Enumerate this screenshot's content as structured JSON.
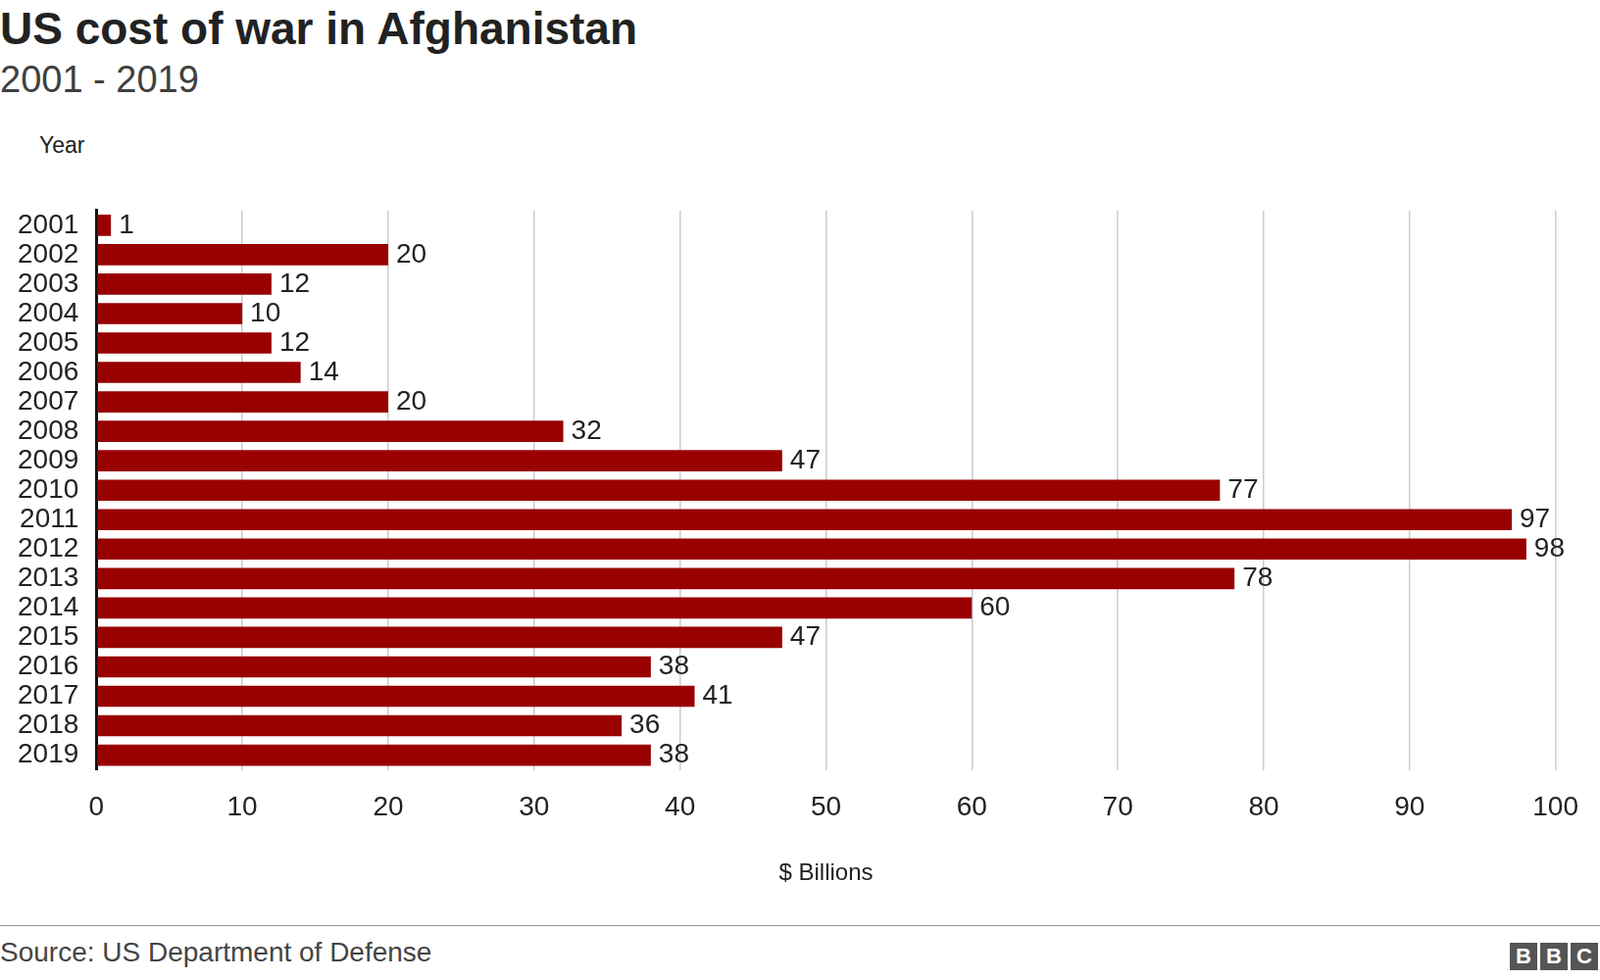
{
  "chart_data": {
    "type": "bar",
    "orientation": "horizontal",
    "title": "US cost of war in Afghanistan",
    "subtitle": "2001 - 2019",
    "y_label": "Year",
    "x_label": "$ Billions",
    "source": "Source: US Department of Defense",
    "logo": "BBC",
    "categories": [
      "2001",
      "2002",
      "2003",
      "2004",
      "2005",
      "2006",
      "2007",
      "2008",
      "2009",
      "2010",
      "2011",
      "2012",
      "2013",
      "2014",
      "2015",
      "2016",
      "2017",
      "2018",
      "2019"
    ],
    "values": [
      1,
      20,
      12,
      10,
      12,
      14,
      20,
      32,
      47,
      77,
      97,
      98,
      78,
      60,
      47,
      38,
      41,
      36,
      38
    ],
    "color": "#990000",
    "xlim": [
      0,
      100
    ],
    "xticks": [
      0,
      10,
      20,
      30,
      40,
      50,
      60,
      70,
      80,
      90,
      100
    ],
    "grid": true,
    "data_labels": true
  }
}
